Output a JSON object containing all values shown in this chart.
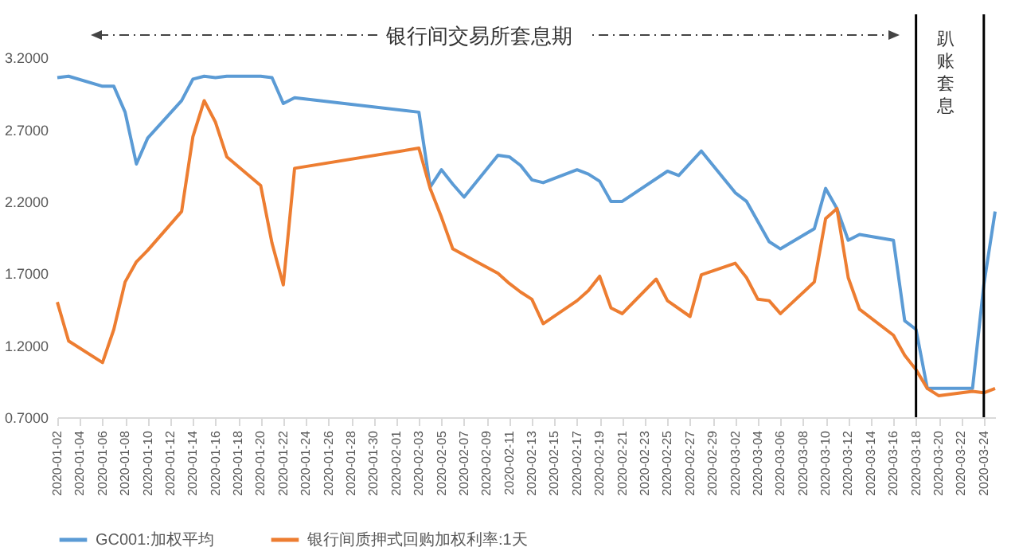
{
  "chart_data": {
    "type": "line",
    "annotations": [
      "银行间交易所套息期",
      "趴账套息"
    ],
    "series": [
      {
        "name": "GC001:加权平均",
        "color": "#5b9bd5",
        "x": [
          "2020-01-02",
          "2020-01-03",
          "2020-01-06",
          "2020-01-07",
          "2020-01-08",
          "2020-01-09",
          "2020-01-10",
          "2020-01-13",
          "2020-01-14",
          "2020-01-15",
          "2020-01-16",
          "2020-01-17",
          "2020-01-20",
          "2020-01-21",
          "2020-01-22",
          "2020-01-23",
          "2020-02-03",
          "2020-02-04",
          "2020-02-05",
          "2020-02-06",
          "2020-02-07",
          "2020-02-10",
          "2020-02-11",
          "2020-02-12",
          "2020-02-13",
          "2020-02-14",
          "2020-02-17",
          "2020-02-18",
          "2020-02-19",
          "2020-02-20",
          "2020-02-21",
          "2020-02-25",
          "2020-02-26",
          "2020-02-28",
          "2020-03-02",
          "2020-03-03",
          "2020-03-05",
          "2020-03-06",
          "2020-03-09",
          "2020-03-10",
          "2020-03-11",
          "2020-03-12",
          "2020-03-13",
          "2020-03-16",
          "2020-03-17",
          "2020-03-18",
          "2020-03-19",
          "2020-03-23",
          "2020-03-24",
          "2020-03-25"
        ],
        "values": [
          3.06,
          3.07,
          3.0,
          3.0,
          2.82,
          2.46,
          2.64,
          2.9,
          3.05,
          3.07,
          3.06,
          3.07,
          3.07,
          3.06,
          2.88,
          2.92,
          2.82,
          2.3,
          2.42,
          2.32,
          2.23,
          2.52,
          2.51,
          2.45,
          2.35,
          2.33,
          2.42,
          2.39,
          2.34,
          2.2,
          2.2,
          2.41,
          2.38,
          2.55,
          2.26,
          2.2,
          1.92,
          1.87,
          2.01,
          2.29,
          2.15,
          1.93,
          1.97,
          1.93,
          1.37,
          1.31,
          0.9,
          0.9,
          1.62,
          2.13
        ]
      },
      {
        "name": "银行间质押式回购加权利率:1天",
        "color": "#ed7d31",
        "x": [
          "2020-01-02",
          "2020-01-03",
          "2020-01-06",
          "2020-01-07",
          "2020-01-08",
          "2020-01-09",
          "2020-01-10",
          "2020-01-13",
          "2020-01-14",
          "2020-01-15",
          "2020-01-16",
          "2020-01-17",
          "2020-01-20",
          "2020-01-21",
          "2020-01-22",
          "2020-01-23",
          "2020-02-03",
          "2020-02-04",
          "2020-02-05",
          "2020-02-06",
          "2020-02-10",
          "2020-02-11",
          "2020-02-12",
          "2020-02-13",
          "2020-02-14",
          "2020-02-17",
          "2020-02-18",
          "2020-02-19",
          "2020-02-20",
          "2020-02-21",
          "2020-02-24",
          "2020-02-25",
          "2020-02-27",
          "2020-02-28",
          "2020-03-02",
          "2020-03-03",
          "2020-03-04",
          "2020-03-05",
          "2020-03-06",
          "2020-03-09",
          "2020-03-10",
          "2020-03-11",
          "2020-03-12",
          "2020-03-13",
          "2020-03-16",
          "2020-03-17",
          "2020-03-18",
          "2020-03-19",
          "2020-03-20",
          "2020-03-23",
          "2020-03-24",
          "2020-03-25"
        ],
        "values": [
          1.5,
          1.23,
          1.08,
          1.31,
          1.64,
          1.78,
          1.86,
          2.13,
          2.65,
          2.9,
          2.75,
          2.51,
          2.31,
          1.91,
          1.62,
          2.43,
          2.57,
          2.29,
          2.09,
          1.87,
          1.7,
          1.63,
          1.57,
          1.52,
          1.35,
          1.51,
          1.58,
          1.68,
          1.46,
          1.42,
          1.66,
          1.51,
          1.4,
          1.69,
          1.77,
          1.67,
          1.52,
          1.51,
          1.42,
          1.64,
          2.08,
          2.15,
          1.67,
          1.45,
          1.27,
          1.13,
          1.03,
          0.9,
          0.85,
          0.88,
          0.87,
          0.9
        ]
      }
    ],
    "xlim": [
      "2020-01-02",
      "2020-03-25"
    ],
    "xticks": [
      "2020-01-02",
      "2020-01-04",
      "2020-01-06",
      "2020-01-08",
      "2020-01-10",
      "2020-01-12",
      "2020-01-14",
      "2020-01-16",
      "2020-01-18",
      "2020-01-20",
      "2020-01-22",
      "2020-01-24",
      "2020-01-26",
      "2020-01-28",
      "2020-01-30",
      "2020-02-01",
      "2020-02-03",
      "2020-02-05",
      "2020-02-07",
      "2020-02-09",
      "2020-02-11",
      "2020-02-13",
      "2020-02-15",
      "2020-02-17",
      "2020-02-19",
      "2020-02-21",
      "2020-02-23",
      "2020-02-25",
      "2020-02-27",
      "2020-02-29",
      "2020-03-02",
      "2020-03-04",
      "2020-03-06",
      "2020-03-08",
      "2020-03-10",
      "2020-03-12",
      "2020-03-14",
      "2020-03-16",
      "2020-03-18",
      "2020-03-20",
      "2020-03-22",
      "2020-03-24"
    ],
    "ylim": [
      0.7,
      3.5
    ],
    "yticks": [
      {
        "value": 0.7,
        "label": "0.7000"
      },
      {
        "value": 1.2,
        "label": "1.2000"
      },
      {
        "value": 1.7,
        "label": "1.7000"
      },
      {
        "value": 2.2,
        "label": "2.2000"
      },
      {
        "value": 2.7,
        "label": "2.7000"
      },
      {
        "value": 3.2,
        "label": "3.2000"
      }
    ],
    "ref_lines": [
      {
        "axis": "x",
        "value": "2020-03-18",
        "color": "#000000"
      },
      {
        "axis": "x",
        "value": "2020-03-24",
        "color": "#000000"
      }
    ],
    "grid": false,
    "legend": "bottom",
    "line_style": "solid",
    "marker": "none"
  }
}
